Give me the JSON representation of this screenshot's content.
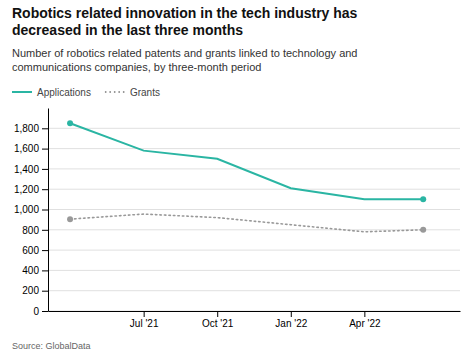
{
  "chart_data": {
    "type": "line",
    "title": "Robotics related innovation in the tech industry has\ndecreased in the last three months",
    "subtitle": "Number of robotics related patents and grants linked to technology and\ncommunications companies, by three-month period",
    "annotations": [
      "Source: GlobalData"
    ],
    "x": [
      0,
      1,
      2,
      3,
      4,
      4.8
    ],
    "series": [
      {
        "name": "Applications",
        "color": "#2ab5a3",
        "line_style": "solid",
        "marker": "endpoints",
        "values": [
          1850,
          1580,
          1500,
          1210,
          1100,
          1100
        ]
      },
      {
        "name": "Grants",
        "color": "#999999",
        "line_style": "dotted",
        "marker": "endpoints",
        "values": [
          905,
          955,
          920,
          850,
          780,
          800
        ]
      }
    ],
    "xlim": [
      -0.3,
      5.3
    ],
    "xticks": [
      {
        "value": 1,
        "label": "Jul '21"
      },
      {
        "value": 2,
        "label": "Oct '21"
      },
      {
        "value": 3,
        "label": "Jan '22"
      },
      {
        "value": 4,
        "label": "Apr '22"
      }
    ],
    "ylim": [
      0,
      2000
    ],
    "yticks": [
      0,
      200,
      400,
      600,
      800,
      {
        "value": 1000,
        "label": "1,000"
      },
      {
        "value": 1200,
        "label": "1,200"
      },
      {
        "value": 1400,
        "label": "1,400"
      },
      {
        "value": 1600,
        "label": "1,600"
      },
      {
        "value": 1800,
        "label": "1,800"
      }
    ],
    "grid": true,
    "legend": "top-left"
  }
}
